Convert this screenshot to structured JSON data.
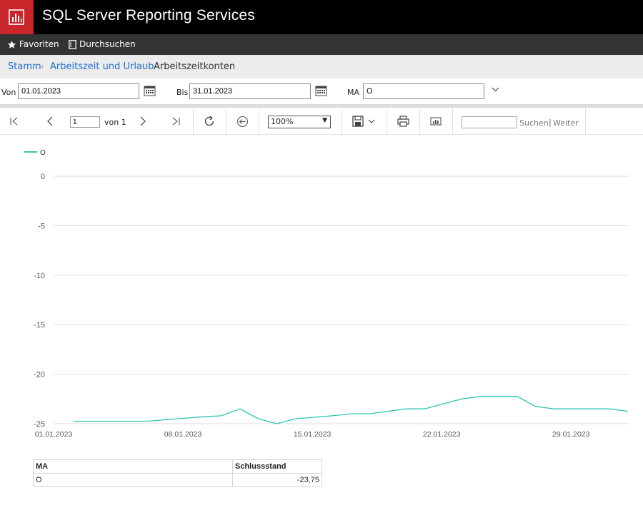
{
  "app": {
    "title": "SQL Server Reporting Services",
    "logo_icon": "report-chart-icon",
    "brand_color": "#c8262b"
  },
  "nav": {
    "favorites": {
      "label": "Favoriten",
      "icon": "star-icon"
    },
    "browse": {
      "label": "Durchsuchen",
      "icon": "document-icon"
    }
  },
  "breadcrumb": {
    "items": [
      "Stamm",
      "Arbeitszeit und Urlaub"
    ],
    "current": "Arbeitszeitkonten"
  },
  "params": {
    "from_label": "Von",
    "from_value": "01.01.2023",
    "to_label": "Bis",
    "to_value": "31.01.2023",
    "ma_label": "MA",
    "ma_value": "O"
  },
  "toolbar": {
    "page_value": "1",
    "page_of": "von 1",
    "zoom": "100%",
    "search_label": "Suchen",
    "next_label": "Weiter",
    "pipe": "|"
  },
  "chart_data": {
    "type": "line",
    "title": "",
    "xlabel": "",
    "ylabel": "",
    "ylim": [
      -25,
      0
    ],
    "yticks": [
      0,
      -5,
      -10,
      -15,
      -20,
      -25
    ],
    "xtick_labels": [
      "01.01.2023",
      "08.01.2023",
      "15.01.2023",
      "22.01.2023",
      "29.01.2023"
    ],
    "legend_position": "top-left",
    "grid": true,
    "series": [
      {
        "name": "O",
        "color": "#2ec4b0",
        "x": [
          "01.01.2023",
          "02.01.2023",
          "03.01.2023",
          "04.01.2023",
          "05.01.2023",
          "06.01.2023",
          "07.01.2023",
          "08.01.2023",
          "09.01.2023",
          "10.01.2023",
          "11.01.2023",
          "12.01.2023",
          "13.01.2023",
          "14.01.2023",
          "15.01.2023",
          "16.01.2023",
          "17.01.2023",
          "18.01.2023",
          "19.01.2023",
          "20.01.2023",
          "21.01.2023",
          "22.01.2023",
          "23.01.2023",
          "24.01.2023",
          "25.01.2023",
          "26.01.2023",
          "27.01.2023",
          "28.01.2023",
          "29.01.2023",
          "30.01.2023",
          "31.01.2023"
        ],
        "values": [
          -24.75,
          -24.75,
          -24.75,
          -24.75,
          -24.75,
          -24.6,
          -24.45,
          -24.3,
          -24.2,
          -23.5,
          -24.5,
          -25.0,
          -24.5,
          -24.35,
          -24.2,
          -24.0,
          -24.0,
          -23.75,
          -23.5,
          -23.5,
          -23.0,
          -22.5,
          -22.25,
          -22.25,
          -22.25,
          -23.25,
          -23.5,
          -23.5,
          -23.5,
          -23.5,
          -23.75
        ]
      }
    ]
  },
  "table": {
    "headers": [
      "MA",
      "Schlussstand"
    ],
    "rows": [
      [
        "O",
        "-23,75"
      ]
    ]
  }
}
